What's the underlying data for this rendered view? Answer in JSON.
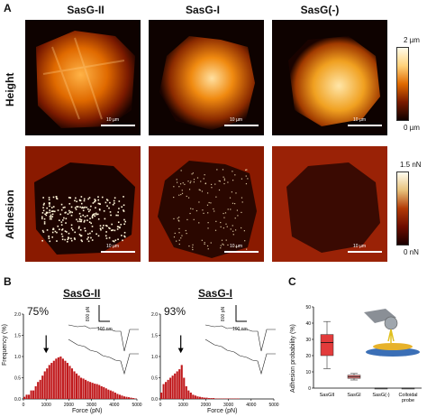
{
  "panel_a": {
    "letter": "A",
    "columns": [
      "SasG-II",
      "SasG-I",
      "SasG(-)"
    ],
    "rows": [
      "Height",
      "Adhesion"
    ],
    "scale_bar": "10 µm",
    "height_colorbar": {
      "max": "2 µm",
      "min": "0 µm",
      "colors": [
        "#100200",
        "#7a1a00",
        "#e06a00",
        "#ffd27a",
        "#fffbea"
      ]
    },
    "adhesion_colorbar": {
      "max": "1.5 nN",
      "min": "0 nN",
      "colors": [
        "#1a0000",
        "#6e0d00",
        "#b23a06",
        "#e7c07a",
        "#fffdf0"
      ]
    }
  },
  "panel_b": {
    "letter": "B",
    "y_axis_label": "Frequency (%)",
    "x_axis_label": "Force (pN)",
    "histograms": [
      {
        "title": "SasG-II",
        "percent": "75%",
        "inset_force_scale": "800 pN",
        "inset_dist_scale": "100 nm"
      },
      {
        "title": "SasG-I",
        "percent": "93%",
        "inset_force_scale": "800 pN",
        "inset_dist_scale": "100 nm"
      }
    ]
  },
  "panel_c": {
    "letter": "C",
    "y_axis_label": "Adhesion probability (%)"
  },
  "chart_data": [
    {
      "type": "bar",
      "title": "SasG-II",
      "xlabel": "Force (pN)",
      "ylabel": "Frequency (%)",
      "xlim": [
        0,
        5000
      ],
      "ylim": [
        0,
        2.0
      ],
      "x_ticks": [
        0,
        1000,
        2000,
        3000,
        4000,
        5000
      ],
      "y_ticks": [
        0,
        0.5,
        1.0,
        1.5,
        2.0
      ],
      "bin_width": 100,
      "values": [
        0.05,
        0.1,
        0.1,
        0.2,
        0.2,
        0.3,
        0.4,
        0.45,
        0.55,
        0.65,
        0.72,
        0.8,
        0.85,
        0.9,
        0.95,
        0.98,
        1.0,
        0.95,
        0.9,
        0.85,
        0.78,
        0.72,
        0.65,
        0.6,
        0.55,
        0.5,
        0.48,
        0.45,
        0.42,
        0.4,
        0.38,
        0.36,
        0.35,
        0.33,
        0.3,
        0.28,
        0.25,
        0.22,
        0.2,
        0.18,
        0.15,
        0.12,
        0.1,
        0.08,
        0.06,
        0.05,
        0.04,
        0.03,
        0.02,
        0.01
      ],
      "annotation": "arrow at ~1000 pN",
      "color": "#c0191c"
    },
    {
      "type": "bar",
      "title": "SasG-I",
      "xlabel": "Force (pN)",
      "ylabel": "Frequency (%)",
      "xlim": [
        0,
        5000
      ],
      "ylim": [
        0,
        2.0
      ],
      "x_ticks": [
        0,
        1000,
        2000,
        3000,
        4000,
        5000
      ],
      "y_ticks": [
        0,
        0.5,
        1.0,
        1.5,
        2.0
      ],
      "bin_width": 100,
      "values": [
        0.15,
        0.35,
        0.4,
        0.45,
        0.5,
        0.55,
        0.6,
        0.65,
        0.7,
        0.8,
        0.5,
        0.3,
        0.2,
        0.15,
        0.1,
        0.08,
        0.06,
        0.05,
        0.04,
        0.03,
        0.03,
        0.02,
        0.02,
        0.02,
        0.01,
        0.01,
        0.01,
        0.01,
        0.01,
        0.01,
        0.01,
        0.01,
        0.01,
        0.01,
        0.01,
        0.0,
        0.0,
        0.0,
        0.0,
        0.0,
        0.0,
        0.0,
        0.0,
        0.0,
        0.0,
        0.0,
        0.0,
        0.0,
        0.0,
        0.0
      ],
      "annotation": "arrow at ~900 pN",
      "color": "#c0191c"
    },
    {
      "type": "box",
      "ylabel": "Adhesion probability (%)",
      "ylim": [
        0,
        50
      ],
      "y_ticks": [
        0,
        10,
        20,
        30,
        40,
        50
      ],
      "categories": [
        "SasGII",
        "SasGI",
        "SasG(-)",
        "Colloidal probe"
      ],
      "boxes": [
        {
          "min": 12,
          "q1": 20,
          "median": 28,
          "q3": 33,
          "max": 41,
          "color": "#e23b3b"
        },
        {
          "min": 5,
          "q1": 6,
          "median": 7,
          "q3": 8,
          "max": 9,
          "color": "#e27c7c"
        },
        {
          "min": 0,
          "q1": 0,
          "median": 0,
          "q3": 0,
          "max": 0,
          "color": "#888888"
        },
        {
          "min": 0,
          "q1": 0,
          "median": 0,
          "q3": 0,
          "max": 0,
          "color": "#888888"
        }
      ]
    }
  ]
}
